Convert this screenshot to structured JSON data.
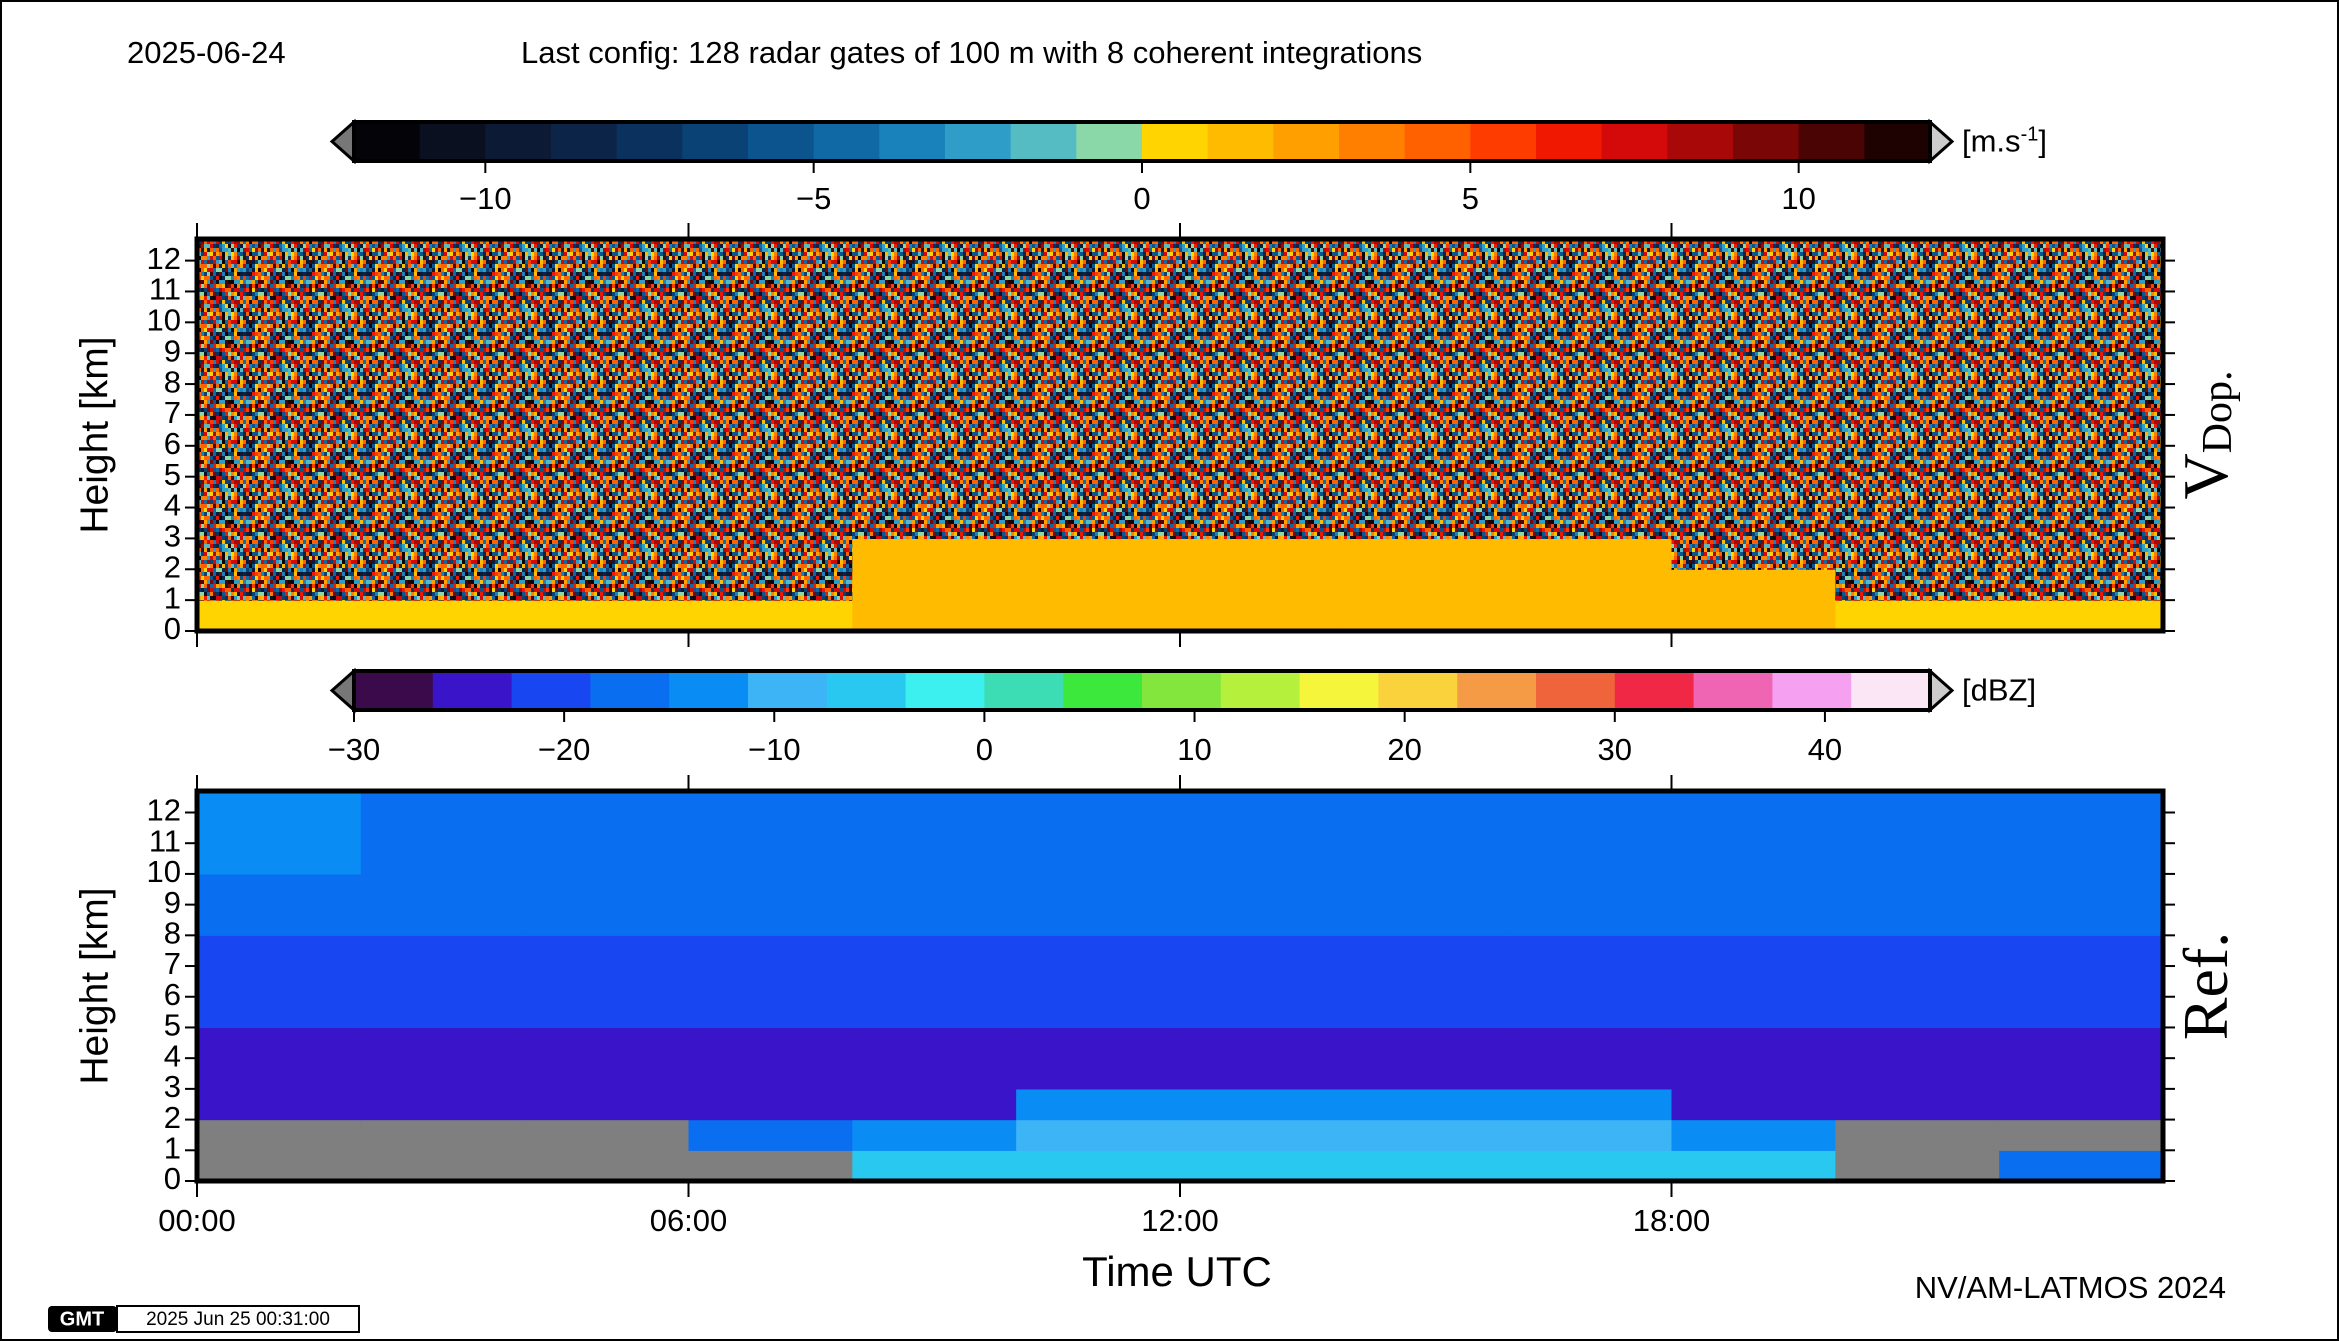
{
  "header": {
    "date": "2025-06-24",
    "config": "Last config: 128 radar gates of 100 m with 8 coherent integrations"
  },
  "chart_data": [
    {
      "type": "heatmap",
      "side_label": {
        "main": "V",
        "sub": "Dop."
      },
      "y_label": "Height [km]",
      "xlim": [
        0,
        24
      ],
      "xticks": [
        0,
        6,
        12,
        18
      ],
      "ylim": [
        0,
        12.7
      ],
      "yticks": [
        0,
        1,
        2,
        3,
        4,
        5,
        6,
        7,
        8,
        9,
        10,
        11,
        12
      ],
      "x_bins": [
        0,
        2,
        4,
        6,
        8,
        10,
        12,
        14,
        16,
        18,
        20,
        22,
        24
      ],
      "y_bins": [
        0,
        1,
        2,
        3,
        4,
        5,
        6,
        7,
        8,
        9,
        10,
        11,
        12,
        12.7
      ],
      "null_fill": "noise",
      "z": [
        [
          0.8,
          0.8,
          0.8,
          0.8,
          1.5,
          1.5,
          1.5,
          1.5,
          1.5,
          1.5,
          0.8,
          0.8
        ],
        [
          null,
          null,
          null,
          null,
          1.5,
          1.5,
          1.5,
          1.5,
          1.5,
          1.5,
          null,
          null
        ],
        [
          null,
          null,
          null,
          null,
          1,
          1,
          1,
          1,
          1,
          null,
          null,
          null
        ],
        [
          null,
          null,
          null,
          null,
          null,
          null,
          null,
          null,
          null,
          null,
          null,
          null
        ],
        [
          null,
          null,
          null,
          null,
          null,
          null,
          null,
          null,
          null,
          null,
          null,
          null
        ],
        [
          null,
          null,
          null,
          null,
          null,
          null,
          null,
          null,
          null,
          null,
          null,
          null
        ],
        [
          null,
          null,
          null,
          null,
          null,
          null,
          null,
          null,
          null,
          null,
          null,
          null
        ],
        [
          null,
          null,
          null,
          null,
          null,
          null,
          null,
          null,
          null,
          null,
          null,
          null
        ],
        [
          null,
          null,
          null,
          null,
          null,
          null,
          null,
          null,
          null,
          null,
          null,
          null
        ],
        [
          null,
          null,
          null,
          null,
          null,
          null,
          null,
          null,
          null,
          null,
          null,
          null
        ],
        [
          null,
          null,
          null,
          null,
          null,
          null,
          null,
          null,
          null,
          null,
          null,
          null
        ],
        [
          null,
          null,
          null,
          null,
          null,
          null,
          null,
          null,
          null,
          null,
          null,
          null
        ],
        [
          null,
          null,
          null,
          null,
          null,
          null,
          null,
          null,
          null,
          null,
          null,
          null
        ]
      ],
      "colorbar": {
        "unit": {
          "text": "[m.s",
          "sup": "-1",
          "end": "]"
        },
        "lim": [
          -12,
          12
        ],
        "ticks": [
          {
            "value": -10,
            "label": "−10"
          },
          {
            "value": -5,
            "label": "−5"
          },
          0,
          5,
          10
        ],
        "colors": [
          "#030308",
          "#0a1020",
          "#0d1a36",
          "#0c2448",
          "#0b325e",
          "#0b4276",
          "#0c548e",
          "#1068a4",
          "#1a82ba",
          "#2e9ec8",
          "#56bcc4",
          "#8ad8a8",
          "#ffd400",
          "#ffbb00",
          "#ff9f00",
          "#ff8000",
          "#ff6000",
          "#ff3c00",
          "#f01800",
          "#d40a0a",
          "#a80808",
          "#7a0606",
          "#4a0404",
          "#1e0202"
        ]
      }
    },
    {
      "type": "heatmap",
      "side_label": {
        "main": "Ref."
      },
      "y_label": "Height [km]",
      "x_label": "Time UTC",
      "xlim": [
        0,
        24
      ],
      "xticks": [
        {
          "value": 0,
          "label": "00:00"
        },
        {
          "value": 6,
          "label": "06:00"
        },
        {
          "value": 12,
          "label": "12:00"
        },
        {
          "value": 18,
          "label": "18:00"
        }
      ],
      "ylim": [
        0,
        12.7
      ],
      "yticks": [
        0,
        1,
        2,
        3,
        4,
        5,
        6,
        7,
        8,
        9,
        10,
        11,
        12
      ],
      "x_bins": [
        0,
        2,
        4,
        6,
        8,
        10,
        12,
        14,
        16,
        18,
        20,
        22,
        24
      ],
      "y_bins": [
        0,
        1,
        2,
        3,
        4,
        5,
        6,
        7,
        8,
        9,
        10,
        11,
        12,
        12.7
      ],
      "null_fill": "#7f7f7f",
      "z": [
        [
          null,
          null,
          null,
          null,
          -6,
          -5,
          -5,
          -5,
          -5,
          -6,
          null,
          -16
        ],
        [
          null,
          null,
          null,
          -18,
          -12,
          -10,
          -10,
          -10,
          -10,
          -12,
          null,
          null
        ],
        [
          -26,
          -26,
          -26,
          -26,
          -26,
          -14,
          -14,
          -14,
          -15,
          -24,
          -26,
          -26
        ],
        [
          -25,
          -25,
          -25,
          -25,
          -25,
          -25,
          -25,
          -25,
          -25,
          -25,
          -25,
          -25
        ],
        [
          -23,
          -23,
          -23,
          -23,
          -23,
          -23,
          -23,
          -23,
          -23,
          -23,
          -23,
          -23
        ],
        [
          -21,
          -21,
          -22,
          -22,
          -22,
          -22,
          -22,
          -22,
          -22,
          -22,
          -22,
          -21
        ],
        [
          -20,
          -20,
          -20,
          -20,
          -20,
          -20,
          -20,
          -20,
          -20,
          -20,
          -20,
          -20
        ],
        [
          -19,
          -19,
          -19,
          -19,
          -19,
          -19,
          -19,
          -19,
          -19,
          -19,
          -19,
          -19
        ],
        [
          -18,
          -18,
          -18,
          -18,
          -18,
          -18,
          -18,
          -18,
          -18,
          -18,
          -18,
          -18
        ],
        [
          -16,
          -17,
          -18,
          -18,
          -18,
          -17,
          -17,
          -17,
          -17,
          -17,
          -17,
          -17
        ],
        [
          -15,
          -16,
          -17,
          -17,
          -17,
          -16,
          -16,
          -16,
          -16,
          -16,
          -16,
          -16
        ],
        [
          -15,
          -16,
          -17,
          -17,
          -17,
          -16,
          -16,
          -16,
          -16,
          -16,
          -16,
          -16
        ],
        [
          -15,
          -16,
          -17,
          -17,
          -17,
          -16,
          -16,
          -16,
          -16,
          -16,
          -16,
          -16
        ]
      ],
      "colorbar": {
        "unit": {
          "text": "[dBZ]"
        },
        "lim": [
          -30,
          45
        ],
        "ticks": [
          {
            "value": -30,
            "label": "−30"
          },
          {
            "value": -20,
            "label": "−20"
          },
          {
            "value": -10,
            "label": "−10"
          },
          0,
          10,
          20,
          30,
          40
        ],
        "colors": [
          "#3a0a4a",
          "#3a14c8",
          "#1846f0",
          "#0a6ef0",
          "#0a8cf5",
          "#3cb4f5",
          "#28c8f0",
          "#3cf0f0",
          "#3cdcb4",
          "#3ce83c",
          "#82e63c",
          "#b4f03c",
          "#f5f53c",
          "#fad23c",
          "#f59b46",
          "#f0643c",
          "#f02846",
          "#f064b4",
          "#f5a0f0",
          "#fae6f5"
        ]
      }
    }
  ],
  "footer": {
    "credit": "NV/AM-LATMOS 2024",
    "logo": "GMT",
    "timestamp": "2025 Jun 25 00:31:00"
  }
}
